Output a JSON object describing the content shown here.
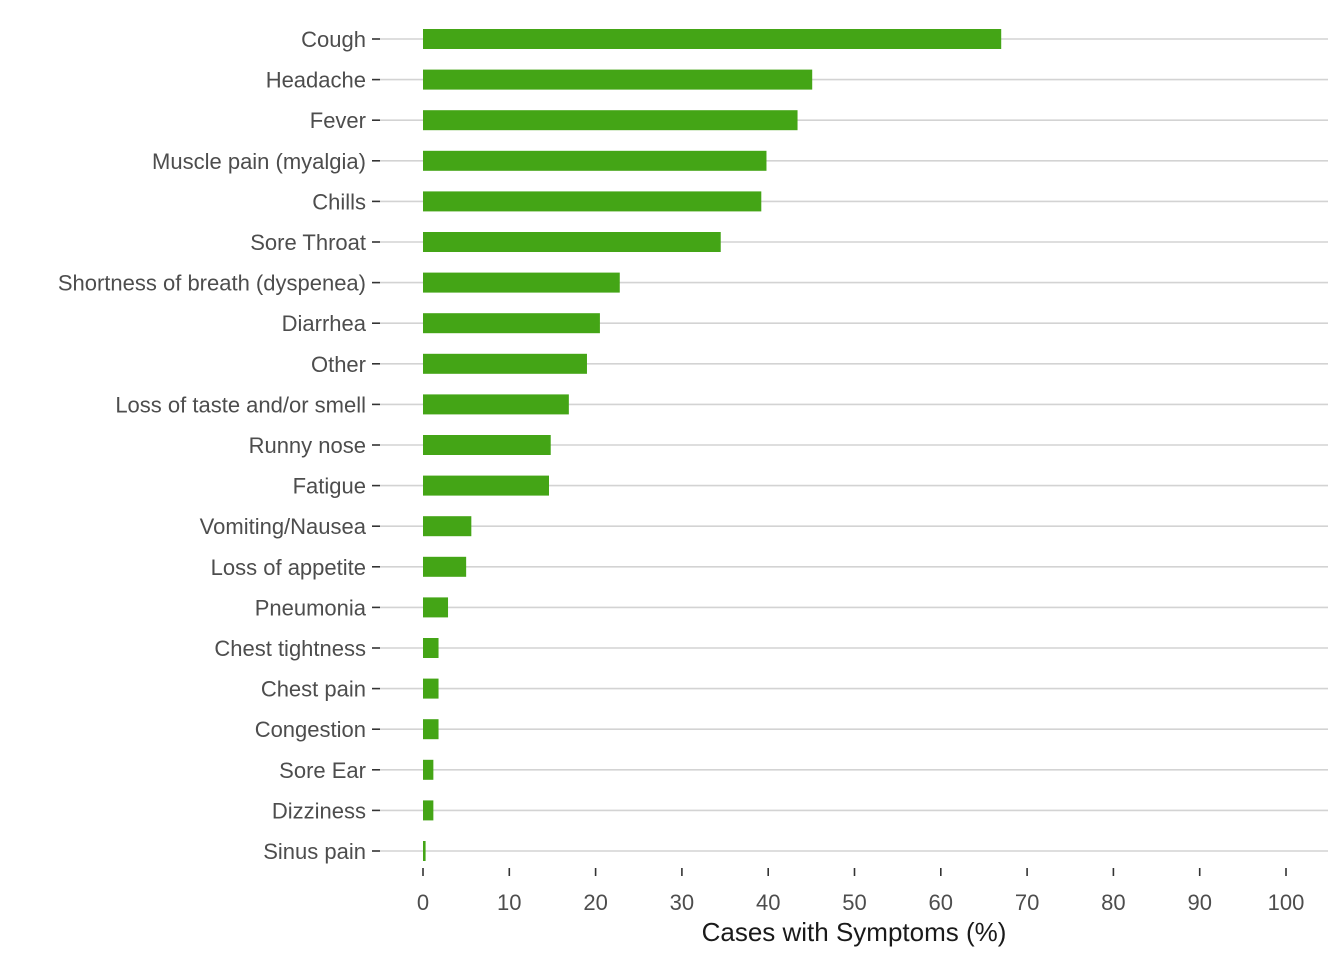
{
  "chart_data": {
    "type": "bar",
    "orientation": "horizontal",
    "title": "",
    "xlabel": "Cases with Symptoms (%)",
    "ylabel": "",
    "xlim": [
      0,
      100
    ],
    "x_ticks": [
      0,
      10,
      20,
      30,
      40,
      50,
      60,
      70,
      80,
      90,
      100
    ],
    "grid": "horizontal",
    "bar_color": "#44a516",
    "gridline_color": "#d3d3d3",
    "categories": [
      "Cough",
      "Headache",
      "Fever",
      "Muscle pain (myalgia)",
      "Chills",
      "Sore Throat",
      "Shortness of breath (dyspenea)",
      "Diarrhea",
      "Other",
      "Loss of taste and/or smell",
      "Runny nose",
      "Fatigue",
      "Vomiting/Nausea",
      "Loss of appetite",
      "Pneumonia",
      "Chest tightness",
      "Chest pain",
      "Congestion",
      "Sore Ear",
      "Dizziness",
      "Sinus pain"
    ],
    "values": [
      67,
      45.1,
      43.4,
      39.8,
      39.2,
      34.5,
      22.8,
      20.5,
      19,
      16.9,
      14.8,
      14.6,
      5.6,
      5,
      2.9,
      1.8,
      1.8,
      1.8,
      1.2,
      1.2,
      0.3
    ]
  }
}
